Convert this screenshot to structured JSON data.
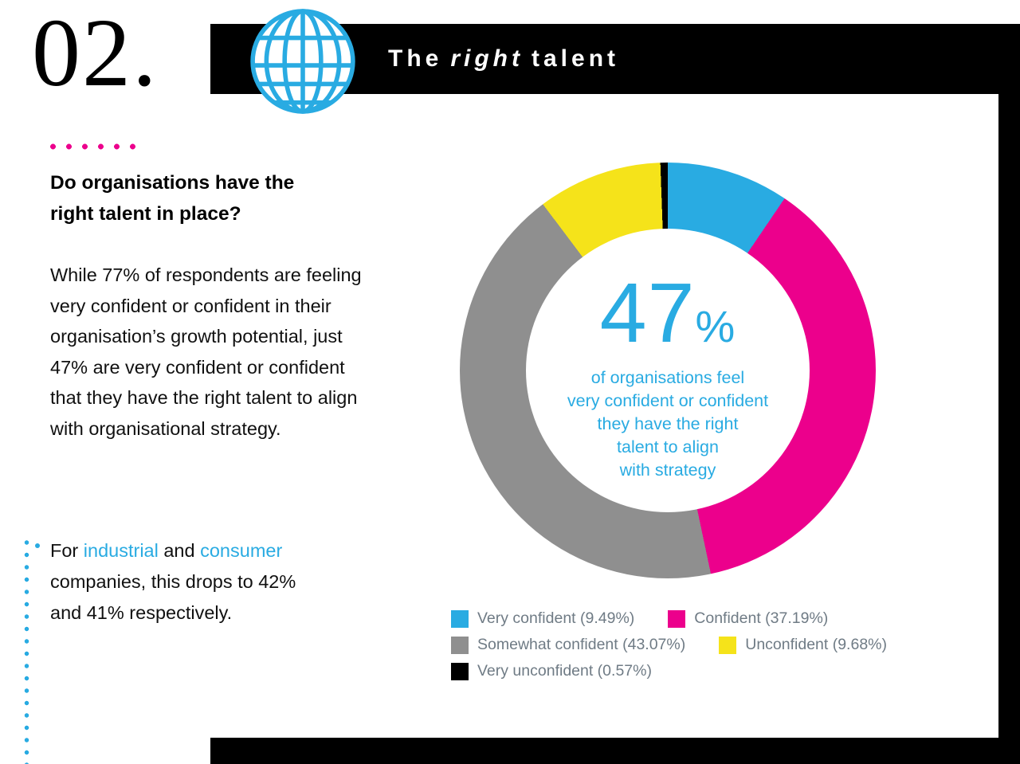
{
  "page": {
    "number": "02."
  },
  "header": {
    "title_pre": "The",
    "title_emphasis": "right",
    "title_post": "talent"
  },
  "intro": {
    "heading": "Do organisations have the right talent in place?",
    "paragraph": "While 77% of respondents are feeling very confident or confident in their organisation’s growth potential, just 47% are very confident or confident that they have the right talent to align with organisational strategy.",
    "note_parts": [
      {
        "text": "For ",
        "highlight": false
      },
      {
        "text": "industrial",
        "highlight": true
      },
      {
        "text": " and ",
        "highlight": false
      },
      {
        "text": "consumer",
        "highlight": true
      },
      {
        "text": " companies, this drops to 42% and 41% respectively.",
        "highlight": false
      }
    ]
  },
  "chart_data": {
    "type": "pie",
    "subtype": "donut",
    "start": "top",
    "direction": "clockwise",
    "legend_position": "bottom",
    "segments": [
      {
        "label": "Very confident",
        "value": 9.49,
        "color": "#29ABE2"
      },
      {
        "label": "Confident",
        "value": 37.19,
        "color": "#EC008C"
      },
      {
        "label": "Somewhat confident",
        "value": 43.07,
        "color": "#8F8F8F"
      },
      {
        "label": "Unconfident",
        "value": 9.68,
        "color": "#F5E31A"
      },
      {
        "label": "Very unconfident",
        "value": 0.57,
        "color": "#000000"
      }
    ],
    "center": {
      "value": "47",
      "unit": "%",
      "caption_lines": [
        "of organisations feel",
        "very confident or confident",
        "they have the right",
        "talent to align",
        "with strategy"
      ]
    }
  },
  "colors": {
    "accent_cyan": "#29ABE2",
    "accent_magenta": "#EC008C",
    "legend_text": "#6F7B85",
    "bar_black": "#000000"
  }
}
